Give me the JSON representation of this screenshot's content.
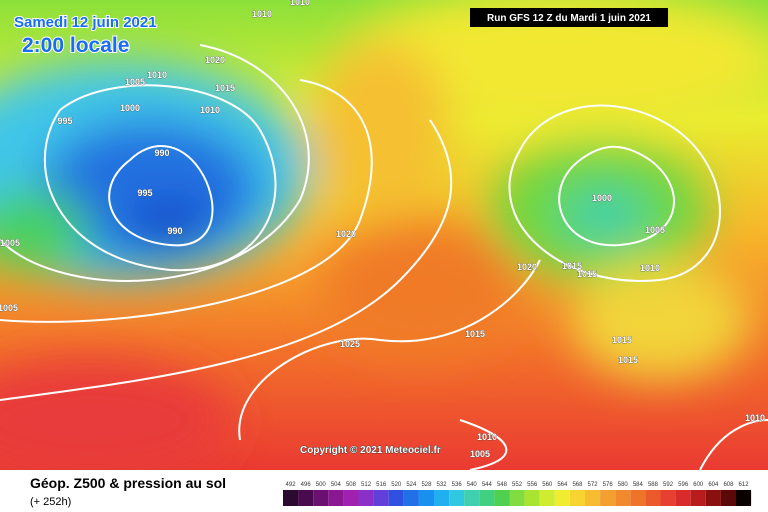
{
  "header": {
    "date": "Samedi 12 juin 2021",
    "time": "2:00 locale",
    "run": "Run GFS 12 Z du Mardi 1 juin 2021"
  },
  "isobars": [
    "1010",
    "1010",
    "1020",
    "1010",
    "1005",
    "1015",
    "1000",
    "1010",
    "995",
    "990",
    "995",
    "990",
    "1005",
    "1020",
    "1005",
    "1025",
    "1000",
    "1005",
    "1020",
    "1015",
    "1015",
    "1010",
    "1015",
    "1015",
    "1015",
    "1010",
    "1005",
    "1010"
  ],
  "copyright": "Copyright © 2021 Meteociel.fr",
  "footer": {
    "title": "Géop. Z500 & pression au sol",
    "lead": "(+ 252h)"
  },
  "colorbar": [
    492,
    496,
    500,
    504,
    508,
    512,
    516,
    520,
    524,
    528,
    532,
    536,
    540,
    544,
    548,
    552,
    556,
    560,
    564,
    568,
    572,
    576,
    580,
    584,
    588,
    592,
    596,
    600,
    604,
    608,
    612
  ]
}
